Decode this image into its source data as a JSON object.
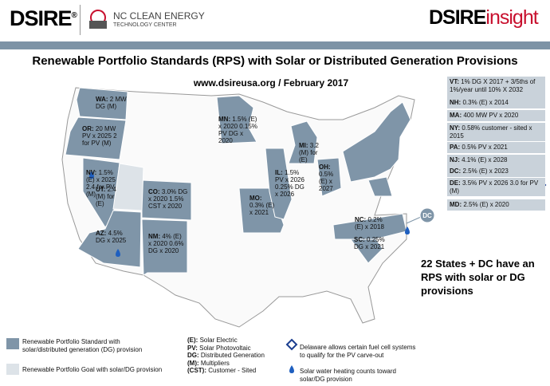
{
  "header": {
    "logo_left": "DSIRE",
    "registered": "®",
    "partner": "NC CLEAN ENERGY",
    "partner_sub": "TECHNOLOGY CENTER",
    "logo_right_main": "DSIRE",
    "logo_right_accent": "insight"
  },
  "title": "Renewable Portfolio Standards (RPS) with Solar or Distributed Generation Provisions",
  "subtitle": "www.dsireusa.org / February 2017",
  "state_labels": [
    {
      "code": "WA:",
      "text": "2 MW DG (M)"
    },
    {
      "code": "OR:",
      "text": "20 MW PV x 2025 2 for PV (M)"
    },
    {
      "code": "NV:",
      "text": "1.5% (E) x 2025 2.4 for PV (M)"
    },
    {
      "code": "UT:",
      "text": "2.4 (M) for (E)"
    },
    {
      "code": "CO:",
      "text": "3.0% DG x 2020 1.5% CST x 2020"
    },
    {
      "code": "AZ:",
      "text": "4.5% DG x 2025"
    },
    {
      "code": "NM:",
      "text": "4% (E) x 2020 0.6% DG x 2020"
    },
    {
      "code": "MN:",
      "text": "1.5% (E) x 2020 0.15% PV DG x 2020"
    },
    {
      "code": "MO:",
      "text": "0.3% (E) x 2021"
    },
    {
      "code": "IL:",
      "text": "1.5% PV x 2026 0.25% DG x 2026"
    },
    {
      "code": "MI:",
      "text": "3.2 (M) for (E)"
    },
    {
      "code": "OH:",
      "text": "0.5% (E) x 2027"
    },
    {
      "code": "NC:",
      "text": "0.2% (E) x 2018"
    },
    {
      "code": "SC:",
      "text": "0.25% DG x 2021"
    }
  ],
  "dc_marker": "DC",
  "sidebar": [
    {
      "code": "VT:",
      "text": "1% DG X 2017 + 3/5ths of 1%/year until 10% X 2032"
    },
    {
      "code": "NH:",
      "text": "0.3% (E) x 2014"
    },
    {
      "code": "MA:",
      "text": "400 MW PV x 2020"
    },
    {
      "code": "NY:",
      "text": "0.58% customer - sited x 2015"
    },
    {
      "code": "PA:",
      "text": "0.5% PV x 2021"
    },
    {
      "code": "NJ:",
      "text": "4.1% (E) x 2028"
    },
    {
      "code": "DC:",
      "text": "2.5% (E) x 2023"
    },
    {
      "code": "DE:",
      "text": "3.5% PV x 2026 3.0 for PV (M)"
    },
    {
      "code": "MD:",
      "text": "2.5% (E) x 2020"
    }
  ],
  "summary": "22 States + DC have an RPS with solar or DG provisions",
  "legend": {
    "standard": "Renewable Portfolio Standard with solar/distributed generation (DG) provision",
    "goal": "Renewable Portfolio Goal with solar/DG provision",
    "abbreviations": [
      {
        "code": "(E):",
        "text": "Solar Electric"
      },
      {
        "code": "PV:",
        "text": "Solar Photovoltaic"
      },
      {
        "code": "DG:",
        "text": "Distributed Generation"
      },
      {
        "code": "(M):",
        "text": "Multipliers"
      },
      {
        "code": "(CST):",
        "text": "Customer - Sited"
      }
    ],
    "delaware": "Delaware allows certain fuel cell systems to qualify for the PV carve-out",
    "water": "Solar water heating counts toward solar/DG provision"
  }
}
